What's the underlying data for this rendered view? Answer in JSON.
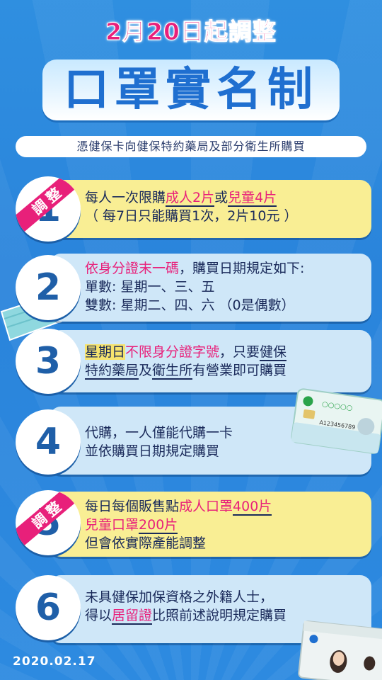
{
  "headline": "2月20日起調整",
  "title": "口罩實名制",
  "subtitle": "憑健保卡向健保特約藥局及部分衛生所購買",
  "badge_label": "調整",
  "items": [
    {
      "number": "1",
      "line1_a": "每人一次限購",
      "line1_b": "成人2片",
      "line1_c": "或",
      "line1_d": "兒童4片",
      "line2": "（ 每7日只能購買1次，2片10元 ）"
    },
    {
      "number": "2",
      "line1_a": "依身分證末一碼",
      "line1_b": "，購買日期規定如下:",
      "line2": "單數:  星期一、三、五",
      "line3": "雙數:  星期二、四、六 （0是偶數）"
    },
    {
      "number": "3",
      "line1_a": "星期日",
      "line1_b": "不限身分證字號",
      "line1_c": "，只要",
      "line1_d": "健保",
      "line2_a": "特約藥局",
      "line2_b": "及",
      "line2_c": "衛生所",
      "line2_d": "有營業即可購買"
    },
    {
      "number": "4",
      "line1": "代購，一人僅能代購一卡",
      "line2": "並依購買日期規定購買"
    },
    {
      "number": "5",
      "line1_a": "每日每個販售點",
      "line1_b": "成人口罩",
      "line1_c": "400片",
      "line2_a": "兒童口罩",
      "line2_b": "200片",
      "line3": "但會依實際產能調整"
    },
    {
      "number": "6",
      "line1": "未具健保加保資格之外籍人士，",
      "line2_a": "得以",
      "line2_b": "居留證",
      "line2_c": "比照前述說明規定購買"
    }
  ],
  "card_number": "A123456789",
  "date": "2020.02.17",
  "colors": {
    "background": "#2a84db",
    "accent_pink": "#e8207a",
    "navy": "#1f5fa8",
    "yellow": "#f9ee94"
  }
}
